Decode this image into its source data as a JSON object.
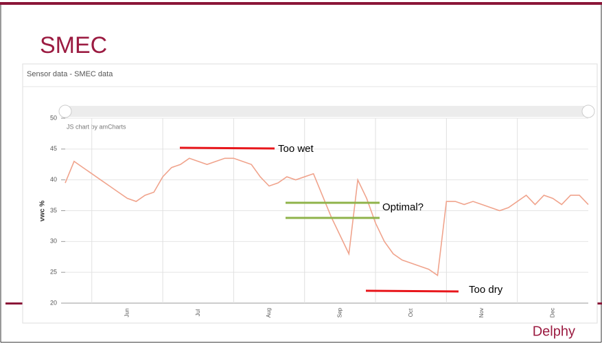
{
  "slide": {
    "title": "SMEC",
    "footer": "Delphy"
  },
  "chart_data": {
    "type": "line",
    "title": "Sensor data - SMEC data",
    "y_label": "vwc %",
    "watermark": "JS chart by amCharts",
    "categories": [
      null,
      null,
      null,
      null,
      null,
      null,
      null,
      "Jun",
      null,
      null,
      null,
      null,
      null,
      null,
      null,
      "Jul",
      null,
      null,
      null,
      null,
      null,
      null,
      null,
      "Aug",
      null,
      null,
      null,
      null,
      null,
      null,
      null,
      "Sep",
      null,
      null,
      null,
      null,
      null,
      null,
      null,
      "Oct",
      null,
      null,
      null,
      null,
      null,
      null,
      null,
      "Nov",
      null,
      null,
      null,
      null,
      null,
      null,
      null,
      "Dec",
      null,
      null,
      null,
      null
    ],
    "series": [
      {
        "name": "SMEC",
        "color": "#f0a38c",
        "values": [
          39.5,
          43,
          42,
          41,
          40,
          39,
          38,
          37,
          36.5,
          37.5,
          38,
          40.5,
          42,
          42.5,
          43.5,
          43,
          42.5,
          43,
          43.5,
          43.5,
          43,
          42.5,
          40.5,
          39,
          39.5,
          40.5,
          40,
          40.5,
          41,
          37.5,
          34,
          31,
          28,
          40,
          37,
          33,
          30,
          28,
          27,
          26.5,
          26,
          25.5,
          24.5,
          36.5,
          36.5,
          36,
          36.5,
          36,
          35.5,
          35,
          35.5,
          36.5,
          37.5,
          36,
          37.5,
          37,
          36,
          37.5,
          37.5,
          36
        ]
      }
    ],
    "ylim": [
      20,
      50
    ],
    "yticks": [
      20,
      25,
      30,
      35,
      40,
      45,
      50
    ],
    "grid": true,
    "annotations": [
      {
        "text": "Too wet",
        "color": "#e8161b"
      },
      {
        "text": "Optimal?",
        "color": "#8fb34a"
      },
      {
        "text": "Too dry",
        "color": "#e8161b"
      }
    ]
  }
}
